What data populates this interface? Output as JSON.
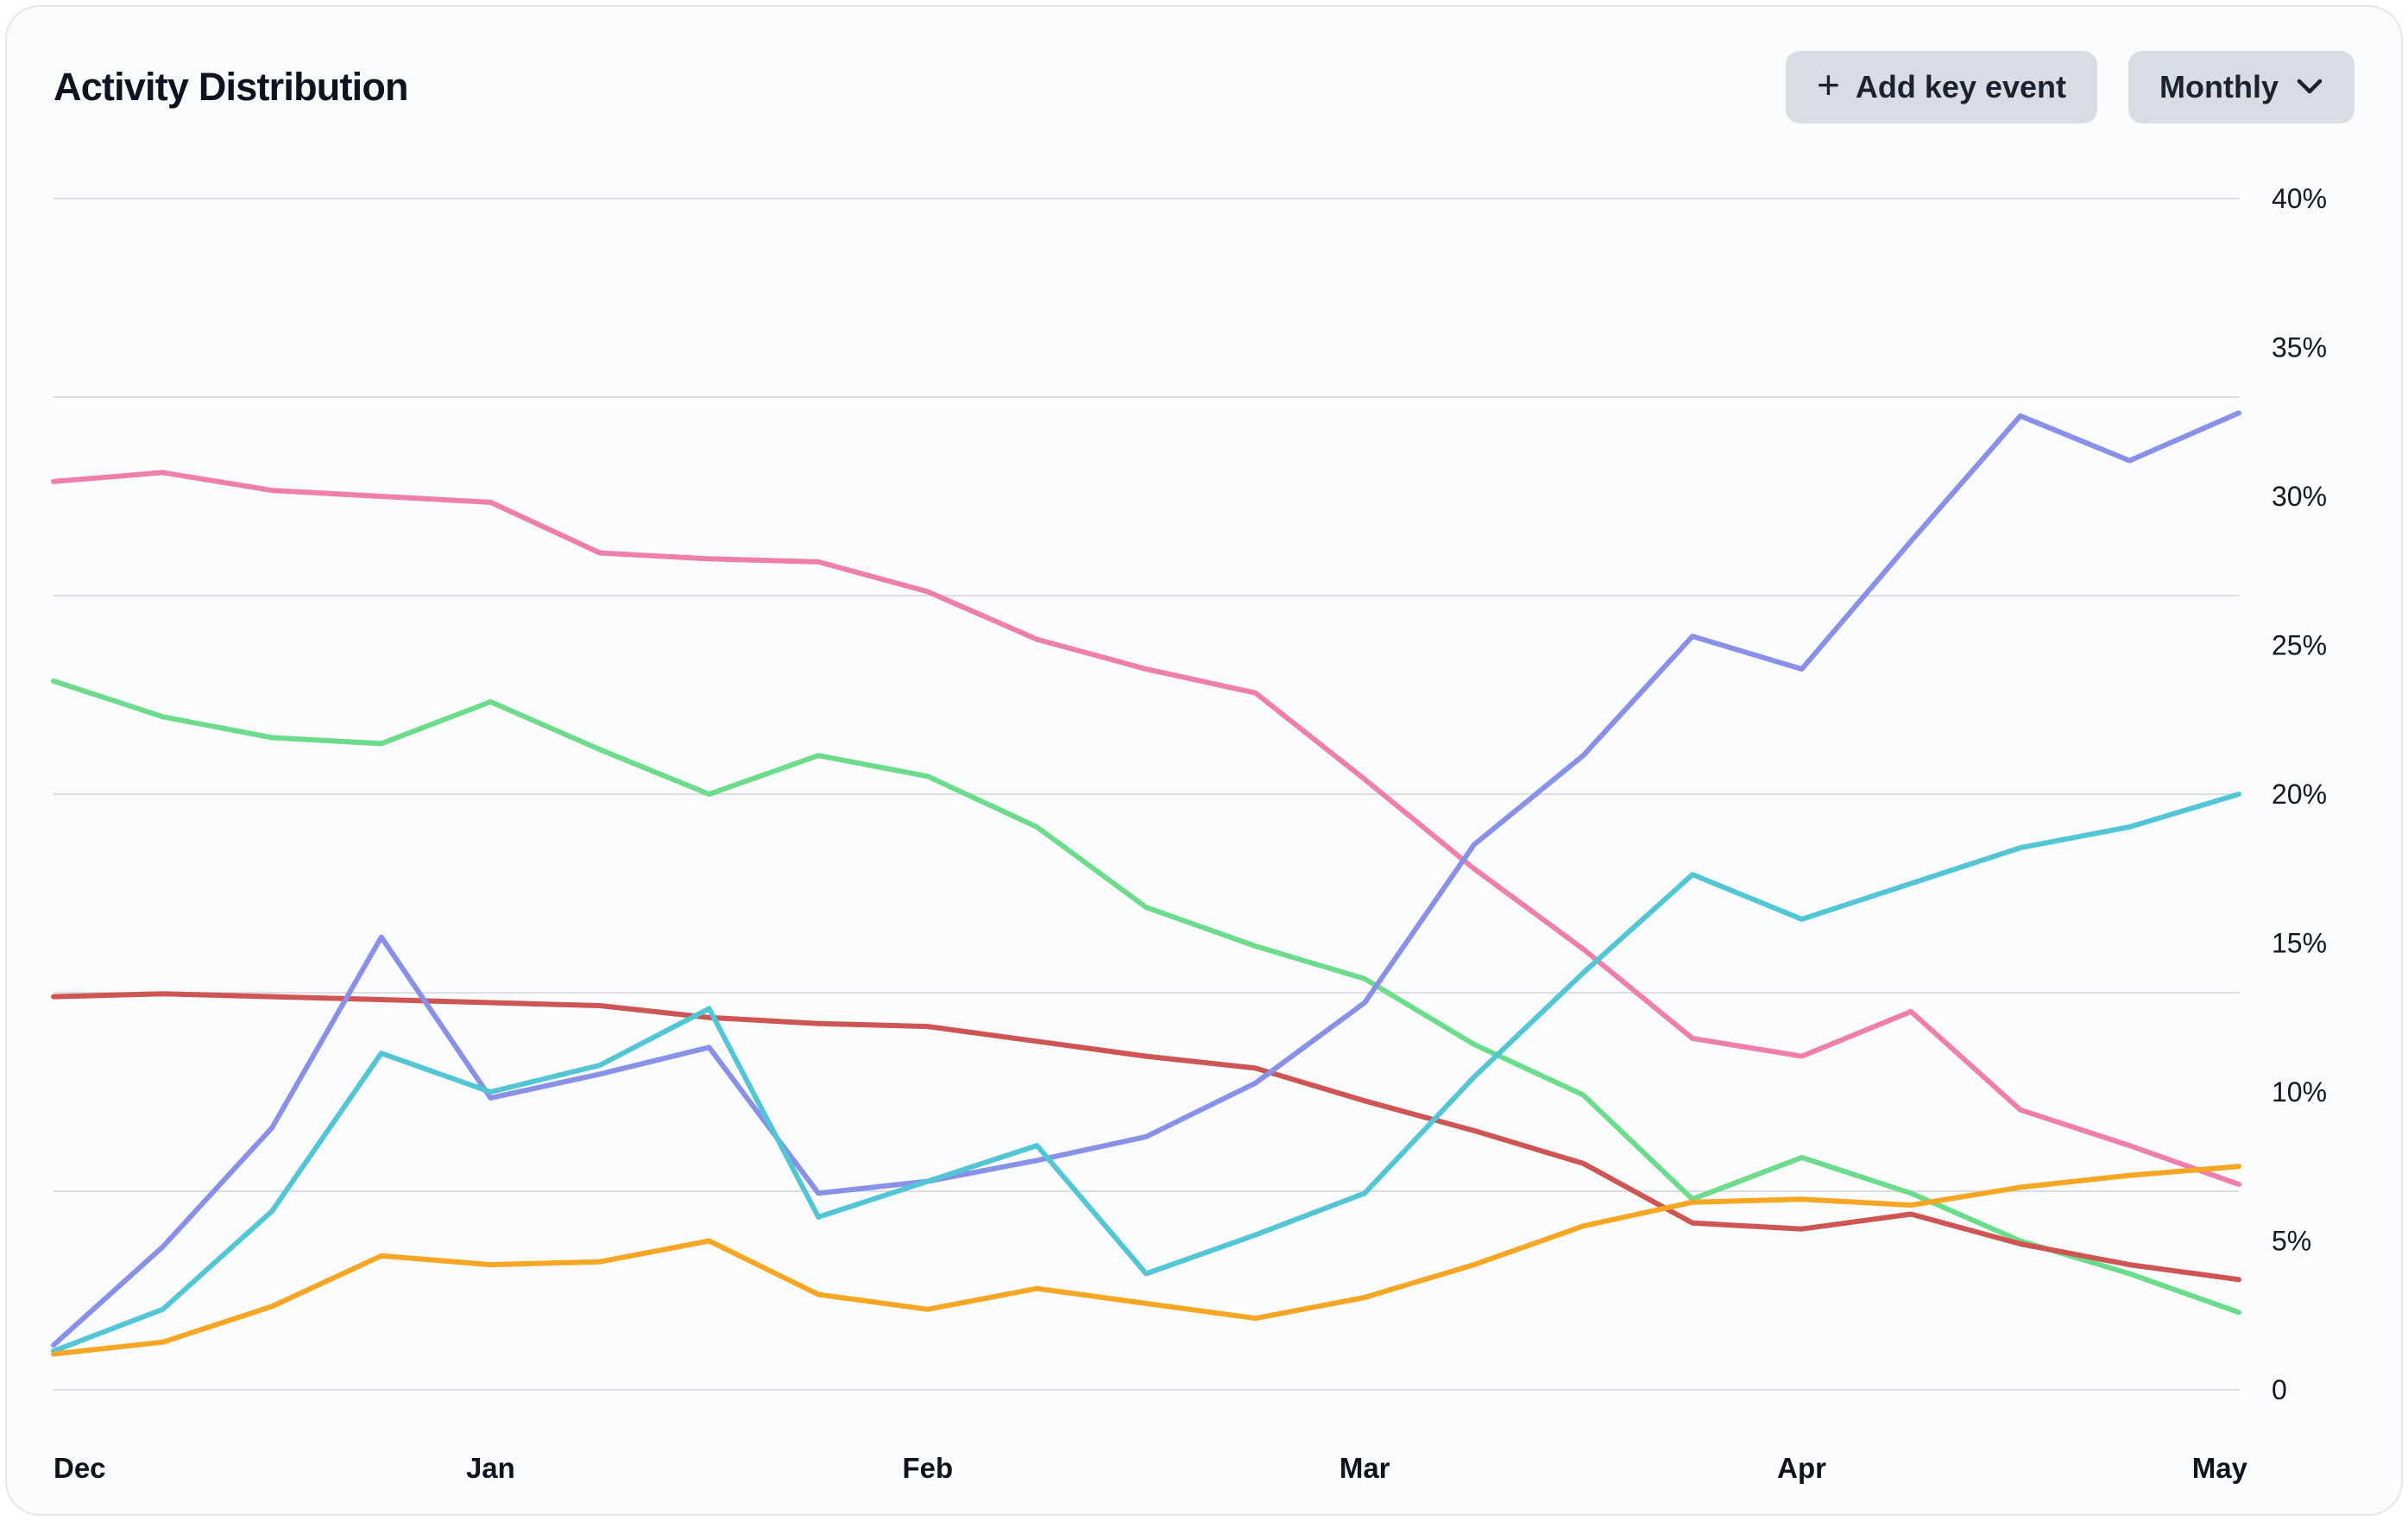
{
  "header": {
    "title": "Activity Distribution",
    "buttons": {
      "add_key_event": "Add key event",
      "period": "Monthly"
    }
  },
  "chart_data": {
    "type": "line",
    "title": "Activity Distribution",
    "legend": "none",
    "x_axis": {
      "tick_labels": [
        "Dec",
        "Jan",
        "Feb",
        "Mar",
        "Apr",
        "May"
      ],
      "tick_point_indices": [
        0,
        4,
        8,
        12,
        16,
        20
      ],
      "points_per_series": 21
    },
    "y_axis": {
      "side": "right",
      "tick_labels": [
        "40%",
        "35%",
        "30%",
        "25%",
        "20%",
        "15%",
        "10%",
        "5%",
        "0"
      ],
      "min": 0,
      "max": 40,
      "unit": "%"
    },
    "grid": {
      "horizontal_lines": 7,
      "vertical_lines": 0,
      "color": "#d7d9dd"
    },
    "series": [
      {
        "name": "pink",
        "color": "#ee7fa9",
        "values": [
          30.5,
          30.8,
          30.2,
          30.0,
          29.8,
          28.1,
          27.9,
          27.8,
          26.8,
          25.2,
          24.2,
          23.4,
          20.5,
          17.5,
          14.8,
          11.8,
          11.2,
          12.7,
          9.4,
          8.2,
          6.9
        ]
      },
      {
        "name": "green",
        "color": "#6cdc8c",
        "values": [
          23.8,
          22.6,
          21.9,
          21.7,
          23.1,
          21.5,
          20.0,
          21.3,
          20.6,
          18.9,
          16.2,
          14.9,
          13.8,
          11.6,
          9.9,
          6.4,
          7.8,
          6.6,
          5.0,
          3.9,
          2.6
        ]
      },
      {
        "name": "red",
        "color": "#cf5454",
        "values": [
          13.2,
          13.3,
          13.2,
          13.1,
          13.0,
          12.9,
          12.5,
          12.3,
          12.2,
          11.7,
          11.2,
          10.8,
          9.7,
          8.7,
          7.6,
          5.6,
          5.4,
          5.9,
          4.9,
          4.2,
          3.7
        ]
      },
      {
        "name": "purple",
        "color": "#8890e8",
        "values": [
          1.5,
          4.8,
          8.8,
          15.2,
          9.8,
          10.6,
          11.5,
          6.6,
          7.0,
          7.7,
          8.5,
          10.3,
          13.0,
          18.3,
          21.3,
          25.3,
          24.2,
          28.5,
          32.7,
          31.2,
          32.8
        ]
      },
      {
        "name": "cyan",
        "color": "#53c6d6",
        "values": [
          1.3,
          2.7,
          6.0,
          11.3,
          10.0,
          10.9,
          12.8,
          5.8,
          7.0,
          8.2,
          3.9,
          5.2,
          6.6,
          10.5,
          14.0,
          17.3,
          15.8,
          17.0,
          18.2,
          18.9,
          20.0
        ]
      },
      {
        "name": "orange",
        "color": "#f5a623",
        "values": [
          1.2,
          1.6,
          2.8,
          4.5,
          4.2,
          4.3,
          5.0,
          3.2,
          2.7,
          3.4,
          2.9,
          2.4,
          3.1,
          4.2,
          5.5,
          6.3,
          6.4,
          6.2,
          6.8,
          7.2,
          7.5
        ]
      }
    ]
  }
}
